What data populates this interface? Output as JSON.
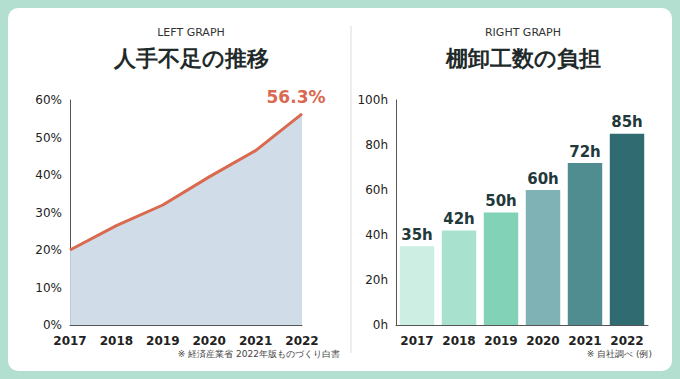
{
  "chart_data": [
    {
      "type": "line",
      "subtitle": "LEFT GRAPH",
      "title": "人手不足の推移",
      "note": "※ 経済産業省 2022年版ものづくり白書",
      "categories": [
        "2017",
        "2018",
        "2019",
        "2020",
        "2021",
        "2022"
      ],
      "values": [
        20,
        26.5,
        32,
        39.5,
        46.5,
        56.3
      ],
      "value_labels": [
        null,
        null,
        null,
        null,
        null,
        "56.3%"
      ],
      "color": "#d9694f",
      "ylim": [
        0,
        60
      ],
      "yticks": [
        {
          "value": 0,
          "label": "0%"
        },
        {
          "value": 10,
          "label": "10%"
        },
        {
          "value": 20,
          "label": "20%"
        },
        {
          "value": 30,
          "label": "30%"
        },
        {
          "value": 40,
          "label": "40%"
        },
        {
          "value": 50,
          "label": "50%"
        },
        {
          "value": 60,
          "label": "60%"
        }
      ],
      "grid": false
    },
    {
      "type": "bar",
      "subtitle": "RIGHT GRAPH",
      "title": "棚卸工数の負担",
      "note": "※ 自社調べ (例)",
      "categories": [
        "2017",
        "2018",
        "2019",
        "2020",
        "2021",
        "2022"
      ],
      "values": [
        35,
        42,
        50,
        60,
        72,
        85
      ],
      "value_labels": [
        "35h",
        "42h",
        "50h",
        "60h",
        "72h",
        "85h"
      ],
      "colors": [
        "#cdeee3",
        "#a9e1cf",
        "#82d2b8",
        "#7fb2b4",
        "#4f8d91",
        "#2f6b71"
      ],
      "ylim": [
        0,
        100
      ],
      "yticks": [
        {
          "value": 0,
          "label": "0h"
        },
        {
          "value": 20,
          "label": "20h"
        },
        {
          "value": 40,
          "label": "40h"
        },
        {
          "value": 60,
          "label": "60h"
        },
        {
          "value": 80,
          "label": "80h"
        },
        {
          "value": 100,
          "label": "100h"
        }
      ],
      "grid": false
    }
  ]
}
